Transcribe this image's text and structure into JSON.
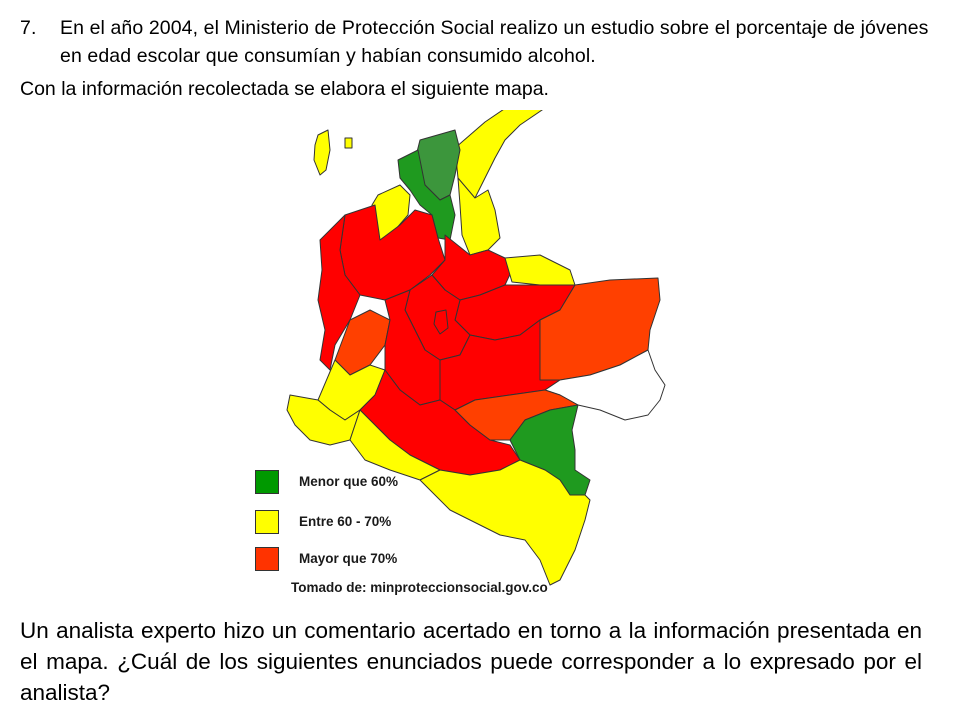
{
  "question": {
    "number": "7.",
    "text": "En el año 2004, el Ministerio de Protección Social realizo un estudio sobre el porcentaje de jóvenes en edad escolar que consumían y habían consumido alcohol.",
    "intro": "Con la información recolectada se elabora el siguiente mapa."
  },
  "legend": {
    "items": [
      {
        "label": "Menor que 60%",
        "color": "#009900"
      },
      {
        "label": "Entre 60 - 70%",
        "color": "#ffff00"
      },
      {
        "label": "Mayor que 70%",
        "color": "#ff3300"
      }
    ]
  },
  "map": {
    "colors": {
      "green": "#1f9a1f",
      "dark_green": "#3c963c",
      "yellow": "#ffff00",
      "red": "#ff0000",
      "orange": "#ff4000",
      "white": "#ffffff",
      "border": "#333333"
    }
  },
  "source": "Tomado de: minproteccionsocial.gov.co",
  "analyst_question": "Un analista experto hizo un comentario acertado en torno a la información presentada en el mapa.  ¿Cuál de los siguientes enunciados puede corresponder a lo expresado por el analista?"
}
